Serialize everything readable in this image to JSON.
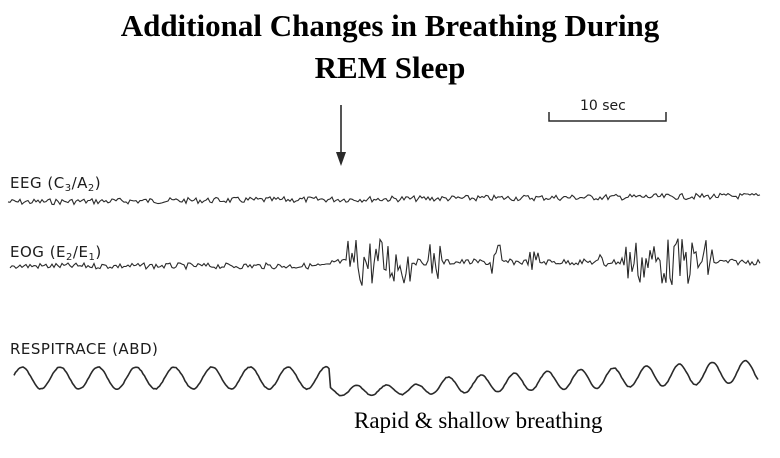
{
  "title": {
    "line1": "Additional Changes in Breathing During",
    "line2": "REM Sleep"
  },
  "scale_bar": {
    "label": "10 sec"
  },
  "channels": [
    {
      "name": "EEG",
      "open": " (C",
      "sub1": "3",
      "slash": "/A",
      "sub2": "2",
      "close": ")"
    },
    {
      "name": "EOG",
      "open": " (E",
      "sub1": "2",
      "slash": "/E",
      "sub2": "1",
      "close": ")"
    },
    {
      "name": "RESPITRACE (ABD)"
    }
  ],
  "annotation": "Rapid & shallow breathing",
  "colors": {
    "trace": "#2a2a2a",
    "text": "#000000"
  }
}
